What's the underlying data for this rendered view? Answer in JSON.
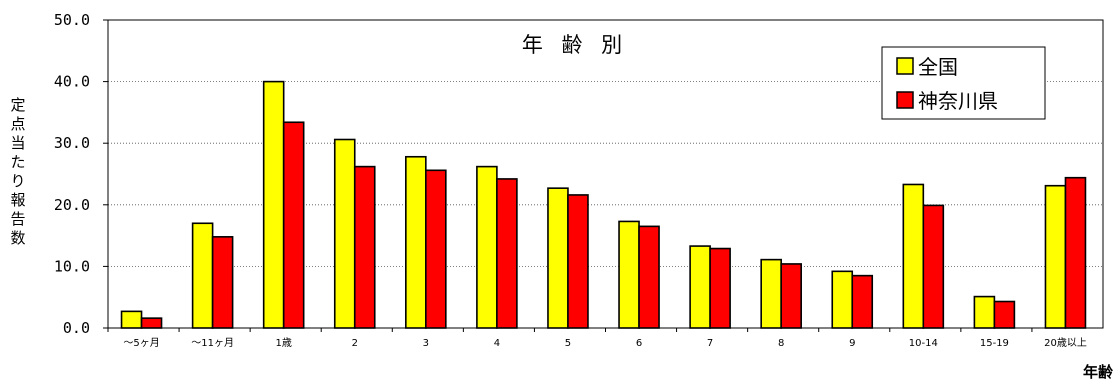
{
  "chart_data": {
    "type": "bar",
    "title": "年 齢 別",
    "ylabel": "定点当たり報告数",
    "xlabel": "年齢",
    "ylim": [
      0,
      50
    ],
    "yticks": [
      "0.0",
      "10.0",
      "20.0",
      "30.0",
      "40.0",
      "50.0"
    ],
    "ytick_values": [
      0,
      10,
      20,
      30,
      40,
      50
    ],
    "grid": "horizontal-dashed",
    "legend_position": "top-right",
    "categories": [
      "～5ヶ月",
      "～11ヶ月",
      "1歳",
      "2",
      "3",
      "4",
      "5",
      "6",
      "7",
      "8",
      "9",
      "10-14",
      "15-19",
      "20歳以上"
    ],
    "series": [
      {
        "name": "全国",
        "color": "#ffff00",
        "values": [
          2.7,
          17.0,
          40.0,
          30.6,
          27.8,
          26.2,
          22.7,
          17.3,
          13.3,
          11.1,
          9.2,
          23.3,
          5.1,
          23.1
        ]
      },
      {
        "name": "神奈川県",
        "color": "#ff0000",
        "values": [
          1.6,
          14.8,
          33.4,
          26.2,
          25.6,
          24.2,
          21.6,
          16.5,
          12.9,
          10.4,
          8.5,
          19.9,
          4.3,
          24.4
        ]
      }
    ]
  }
}
